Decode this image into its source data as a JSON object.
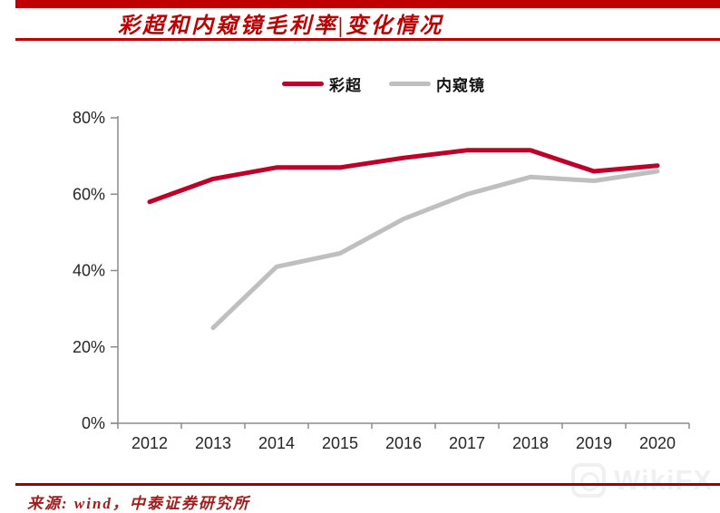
{
  "page": {
    "title": "彩超和内窥镜毛利率|变化情况",
    "source_note": "来源: wind，中泰证券研究所",
    "watermark_text": "WikiFX"
  },
  "colors": {
    "accent_red": "#C00000",
    "rule_red": "#A00000",
    "source_red": "#A21C1C",
    "line_red": "#C00028",
    "line_gray": "#BFBFBF",
    "axis_gray": "#8C8C8C",
    "label_dark": "#262626",
    "watermark_gray": "#F0F0F0"
  },
  "chart_data": {
    "type": "line",
    "title": "彩超和内窥镜毛利率变化情况",
    "categories": [
      "2012",
      "2013",
      "2014",
      "2015",
      "2016",
      "2017",
      "2018",
      "2019",
      "2020"
    ],
    "series": [
      {
        "name": "彩超",
        "color": "#C00028",
        "values": [
          58,
          64,
          67,
          67,
          69.5,
          71.5,
          71.5,
          66,
          67.5
        ]
      },
      {
        "name": "内窥镜",
        "color": "#BFBFBF",
        "values": [
          null,
          25,
          41,
          44.5,
          53.5,
          60,
          64.5,
          63.5,
          66
        ]
      }
    ],
    "ylim": [
      0,
      80
    ],
    "yticks": [
      {
        "value": 0,
        "label": "0%"
      },
      {
        "value": 20,
        "label": "20%"
      },
      {
        "value": 40,
        "label": "40%"
      },
      {
        "value": 60,
        "label": "60%"
      },
      {
        "value": 80,
        "label": "80%"
      }
    ],
    "xlabel": "",
    "ylabel": "",
    "grid": false,
    "legend_position": "top-center"
  }
}
